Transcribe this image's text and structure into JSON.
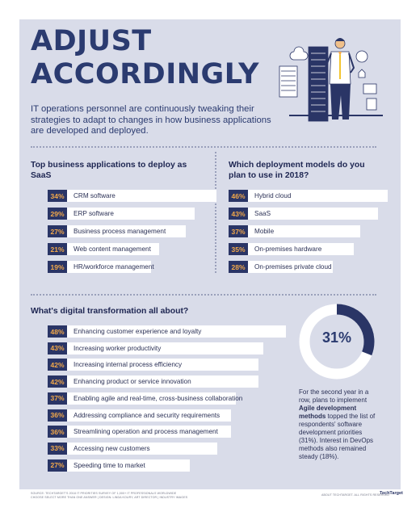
{
  "header": {
    "title_line1": "ADJUST",
    "title_line2": "ACCORDINGLY",
    "intro": "IT operations personnel are continuously tweaking their strategies to adapt to changes in how business applications are developed and deployed."
  },
  "saas": {
    "title": "Top business applications to deploy as SaaS",
    "items": [
      {
        "pct": "34%",
        "label": "CRM software",
        "value": 34
      },
      {
        "pct": "29%",
        "label": "ERP software",
        "value": 29
      },
      {
        "pct": "27%",
        "label": "Business process management",
        "value": 27
      },
      {
        "pct": "21%",
        "label": "Web content management",
        "value": 21
      },
      {
        "pct": "19%",
        "label": "HR/workforce management",
        "value": 19
      }
    ]
  },
  "deployment": {
    "title": "Which deployment models do you plan to use in 2018?",
    "items": [
      {
        "pct": "46%",
        "label": "Hybrid cloud",
        "value": 46
      },
      {
        "pct": "43%",
        "label": "SaaS",
        "value": 43
      },
      {
        "pct": "37%",
        "label": "Mobile",
        "value": 37
      },
      {
        "pct": "35%",
        "label": "On-premises hardware",
        "value": 35
      },
      {
        "pct": "28%",
        "label": "On-premises private cloud",
        "value": 28
      }
    ]
  },
  "transformation": {
    "title": "What's digital transformation all about?",
    "items": [
      {
        "pct": "48%",
        "label": "Enhancing customer experience and loyalty",
        "value": 48
      },
      {
        "pct": "43%",
        "label": "Increasing worker productivity",
        "value": 43
      },
      {
        "pct": "42%",
        "label": "Increasing internal process efficiency",
        "value": 42
      },
      {
        "pct": "42%",
        "label": "Enhancing product or service innovation",
        "value": 42
      },
      {
        "pct": "37%",
        "label": "Enabling agile and real-time, cross-business collaboration",
        "value": 37
      },
      {
        "pct": "36%",
        "label": "Addressing compliance and security requirements",
        "value": 36
      },
      {
        "pct": "36%",
        "label": "Streamlining operation and process management",
        "value": 36
      },
      {
        "pct": "33%",
        "label": "Accessing new customers",
        "value": 33
      },
      {
        "pct": "27%",
        "label": "Speeding time to market",
        "value": 27
      }
    ]
  },
  "agile": {
    "pct_label": "31%",
    "value": 31,
    "note_before": "For the second year in a row, plans to implement ",
    "note_bold": "Agile development methods",
    "note_after": " topped the list of respondents' software development priorities (31%). Interest in DevOps methods also remained steady (18%)."
  },
  "footer": {
    "source_line1": "SOURCE: TECHTARGET'S 2018 IT PRIORITIES SURVEY OF 1,000+ IT PROFESSIONALS WORLDWIDE",
    "source_line2": "CHOOSE SELECT MORE THAN ONE ANSWER | DESIGN: LINDA KOURY, ART DIRECTOR | INDUSTRY IMAGES",
    "copyright": "ABOUT TECHTARGET. ALL RIGHTS RESERVED",
    "logo": "TechTarget"
  },
  "colors": {
    "background": "#d9dce9",
    "navy": "#2a3566",
    "orange": "#f3a94a",
    "donut_track": "#ffffff"
  }
}
